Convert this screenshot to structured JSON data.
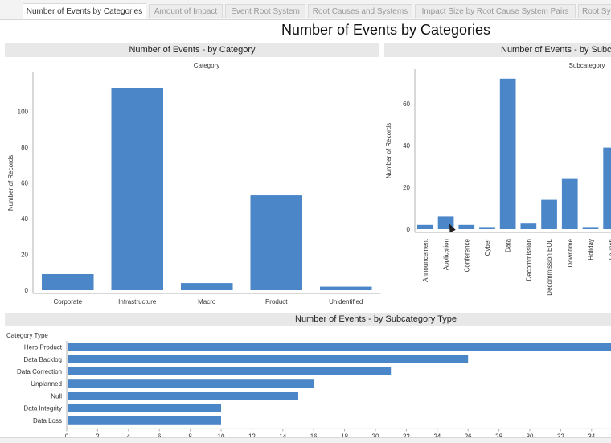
{
  "tabs": [
    {
      "label": "Number of Events by Categories",
      "active": true
    },
    {
      "label": "Amount of Impact",
      "active": false
    },
    {
      "label": "Event Root System",
      "active": false
    },
    {
      "label": "Root Causes and Systems",
      "active": false
    },
    {
      "label": "Impact Size by Root Cause System Pairs",
      "active": false
    },
    {
      "label": "Root Sys",
      "active": false
    }
  ],
  "dashboard_title": "Number of Events by Categories",
  "panels": {
    "category": {
      "header": "Number of Events - by Category"
    },
    "subcategory": {
      "header": "Number of Events - by Subc"
    },
    "subcategory_type": {
      "header": "Number of Events - by Subcategory Type"
    }
  },
  "colors": {
    "bar": "#4a86c8",
    "axis": "#b0b0b0"
  },
  "chart_data": [
    {
      "type": "bar",
      "title": "Category",
      "ylabel": "Number of Records",
      "categories": [
        "Corporate",
        "Infrastructure",
        "Macro",
        "Product",
        "Unidentified"
      ],
      "values": [
        9,
        113,
        4,
        53,
        2
      ],
      "ylim": [
        0,
        120
      ],
      "yticks": [
        0,
        20,
        40,
        60,
        80,
        100
      ],
      "grid": false
    },
    {
      "type": "bar",
      "title": "Subcategory",
      "ylabel": "Number of Records",
      "categories": [
        "Announcement",
        "Application",
        "Conference",
        "Cyber",
        "Data",
        "Decommission",
        "Decommission EOL",
        "Downtime",
        "Holiday",
        "Launch"
      ],
      "values": [
        2,
        6,
        2,
        1,
        72,
        3,
        14,
        24,
        1,
        39
      ],
      "ylim": [
        0,
        75
      ],
      "yticks": [
        0,
        20,
        40,
        60
      ],
      "grid": false
    },
    {
      "type": "bar",
      "orientation": "horizontal",
      "title": "Category Type",
      "categories": [
        "Hero Product",
        "Data Backlog",
        "Data Correction",
        "Unplanned",
        "Null",
        "Data Integrity",
        "Data Loss"
      ],
      "values": [
        36,
        26,
        21,
        16,
        15,
        10,
        10
      ],
      "xlim": [
        0,
        35
      ],
      "xticks": [
        0,
        2,
        4,
        6,
        8,
        10,
        12,
        14,
        16,
        18,
        20,
        22,
        24,
        26,
        28,
        30,
        32,
        34
      ],
      "grid": false
    }
  ]
}
